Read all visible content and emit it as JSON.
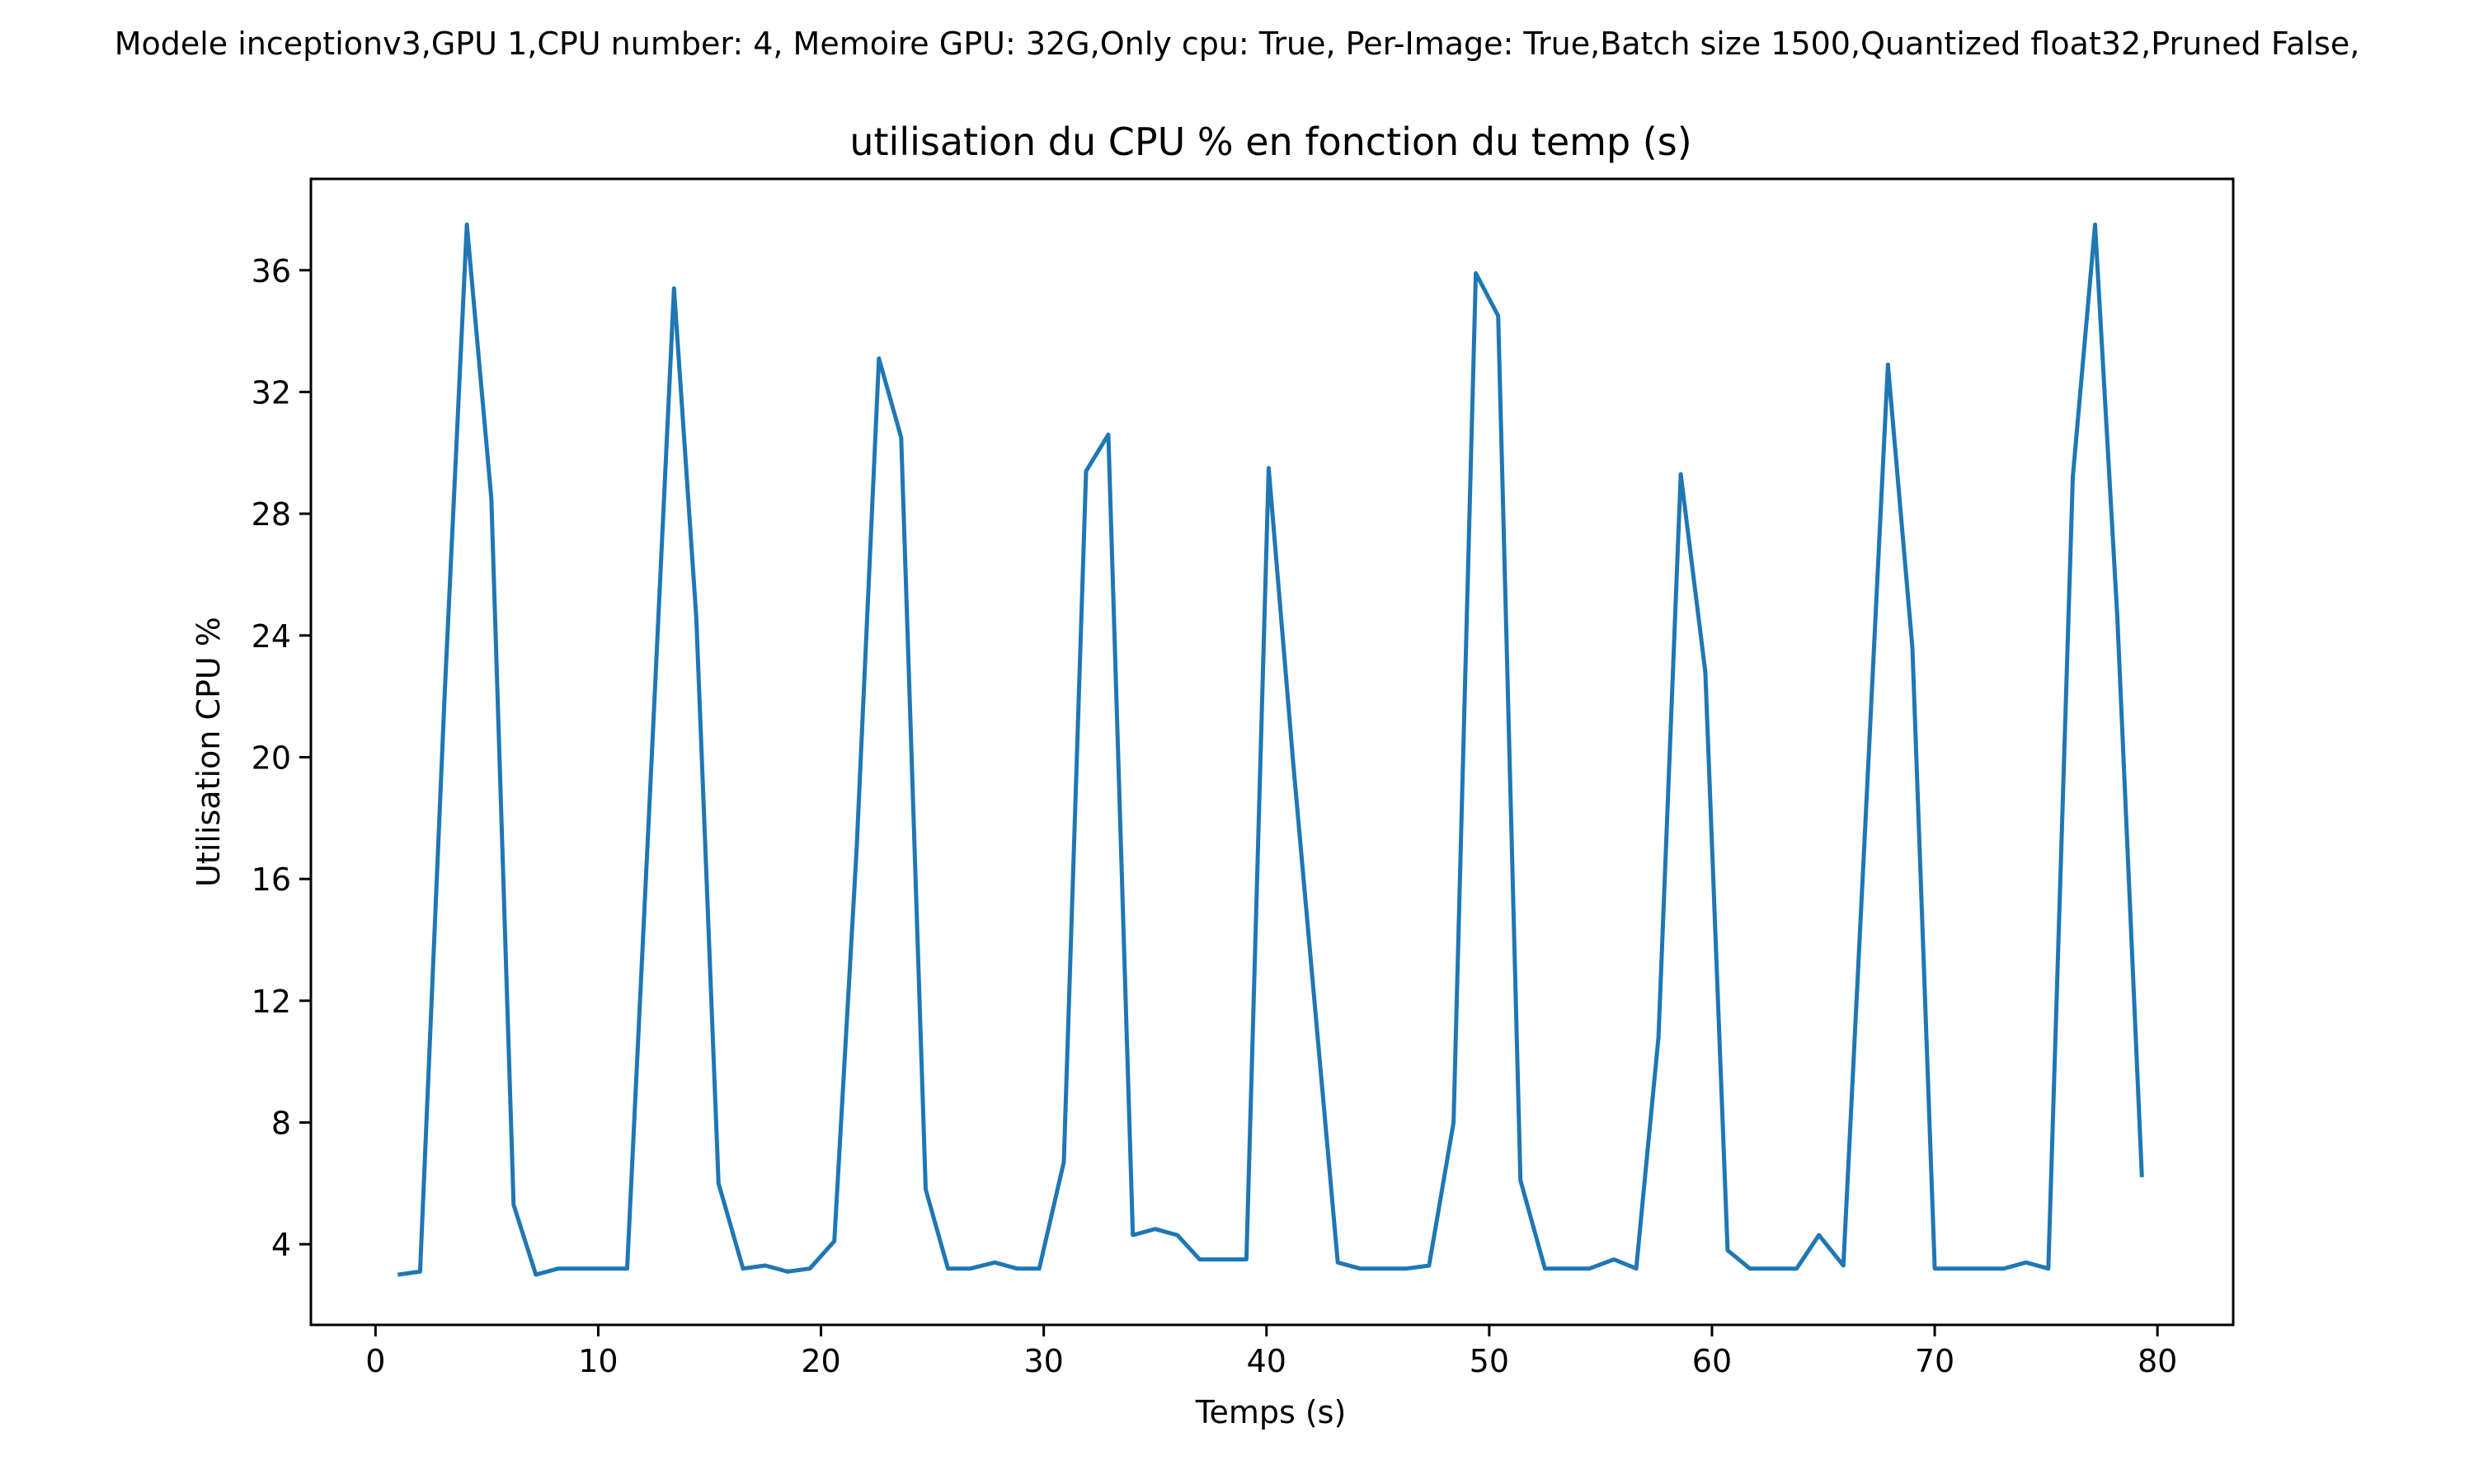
{
  "header": {
    "text": "Modele inceptionv3,GPU 1,CPU number: 4, Memoire GPU: 32G,Only cpu: True, Per-Image: True,Batch size 1500,Quantized float32,Pruned False,"
  },
  "chart_data": {
    "type": "line",
    "title": "utilisation du CPU % en fonction du temp (s)",
    "xlabel": "Temps (s)",
    "ylabel": "Utilisation CPU %",
    "xlim": [
      -2.9,
      83.4
    ],
    "ylim": [
      1.35,
      39.0
    ],
    "xticks": [
      0,
      10,
      20,
      30,
      40,
      50,
      60,
      70,
      80
    ],
    "yticks": [
      4,
      8,
      12,
      16,
      20,
      24,
      28,
      32,
      36
    ],
    "grid": false,
    "legend": "none",
    "series_color": "#1f77b4",
    "series": [
      {
        "x": [
          1.0,
          2.0,
          3.1,
          4.1,
          5.2,
          6.2,
          7.2,
          8.2,
          9.3,
          10.3,
          11.3,
          12.4,
          13.4,
          14.4,
          15.4,
          16.5,
          17.5,
          18.5,
          19.5,
          20.6,
          21.6,
          22.6,
          23.6,
          24.7,
          25.7,
          26.7,
          27.8,
          28.8,
          29.8,
          30.9,
          31.9,
          32.9,
          34.0,
          35.0,
          36.0,
          37.0,
          38.1,
          39.1,
          40.1,
          41.2,
          42.2,
          43.2,
          44.2,
          45.3,
          46.3,
          47.3,
          48.4,
          49.4,
          50.4,
          51.4,
          52.5,
          53.5,
          54.5,
          55.6,
          56.6,
          57.6,
          58.6,
          59.7,
          60.7,
          61.7,
          62.8,
          63.8,
          64.8,
          65.9,
          66.9,
          67.9,
          69.0,
          70.0,
          71.0,
          72.0,
          73.1,
          74.1,
          75.1,
          76.2,
          77.2,
          78.2,
          79.3
        ],
        "y": [
          3.0,
          3.1,
          22.0,
          37.5,
          28.5,
          5.3,
          3.0,
          3.2,
          3.2,
          3.2,
          3.2,
          20.0,
          35.4,
          24.6,
          6.0,
          3.2,
          3.3,
          3.1,
          3.2,
          4.1,
          17.0,
          33.1,
          30.5,
          5.8,
          3.2,
          3.2,
          3.4,
          3.2,
          3.2,
          6.7,
          29.4,
          30.6,
          4.3,
          4.5,
          4.3,
          3.5,
          3.5,
          3.5,
          29.5,
          19.8,
          11.6,
          3.4,
          3.2,
          3.2,
          3.2,
          3.3,
          8.0,
          35.9,
          34.5,
          6.1,
          3.2,
          3.2,
          3.2,
          3.5,
          3.2,
          10.8,
          29.3,
          22.8,
          3.8,
          3.2,
          3.2,
          3.2,
          4.3,
          3.3,
          18.0,
          32.9,
          23.6,
          3.2,
          3.2,
          3.2,
          3.2,
          3.4,
          3.2,
          29.2,
          37.5,
          24.6,
          6.2
        ]
      }
    ]
  }
}
